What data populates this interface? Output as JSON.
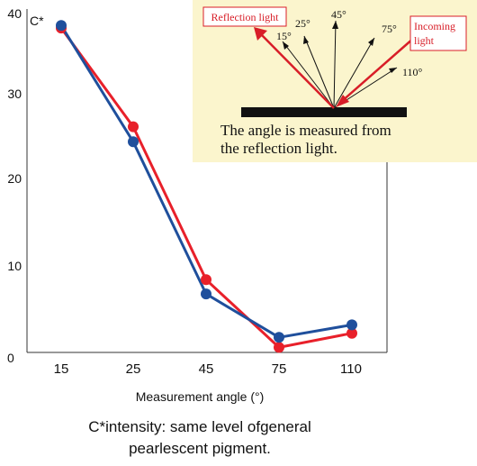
{
  "chart_data": {
    "type": "line",
    "categories": [
      "15",
      "25",
      "45",
      "75",
      "110"
    ],
    "series": [
      {
        "color": "#e8202a",
        "values": [
          38.8,
          27.0,
          8.7,
          0.6,
          2.3
        ]
      },
      {
        "color": "#1f4f9c",
        "values": [
          39.1,
          25.2,
          7.0,
          1.8,
          3.3
        ]
      }
    ],
    "ylim": [
      0,
      40
    ],
    "yticks": [
      "0",
      "10",
      "20",
      "30",
      "40"
    ],
    "ylabel": "C*",
    "xlabel": "Measurement angle (°)",
    "grid": false,
    "caption_lines": [
      "C*intensity: same level ofgeneral",
      "pearlescent pigment."
    ]
  },
  "inset": {
    "reflection_label": "Reflection light",
    "incoming_label_lines": [
      "Incoming",
      "light"
    ],
    "angle_labels": [
      "15°",
      "25°",
      "45°",
      "75°",
      "110°"
    ],
    "note_lines": [
      "The angle is measured from",
      "the reflection light."
    ],
    "background_color": "#fbf5cd",
    "arrow_color": "#d81e28"
  }
}
